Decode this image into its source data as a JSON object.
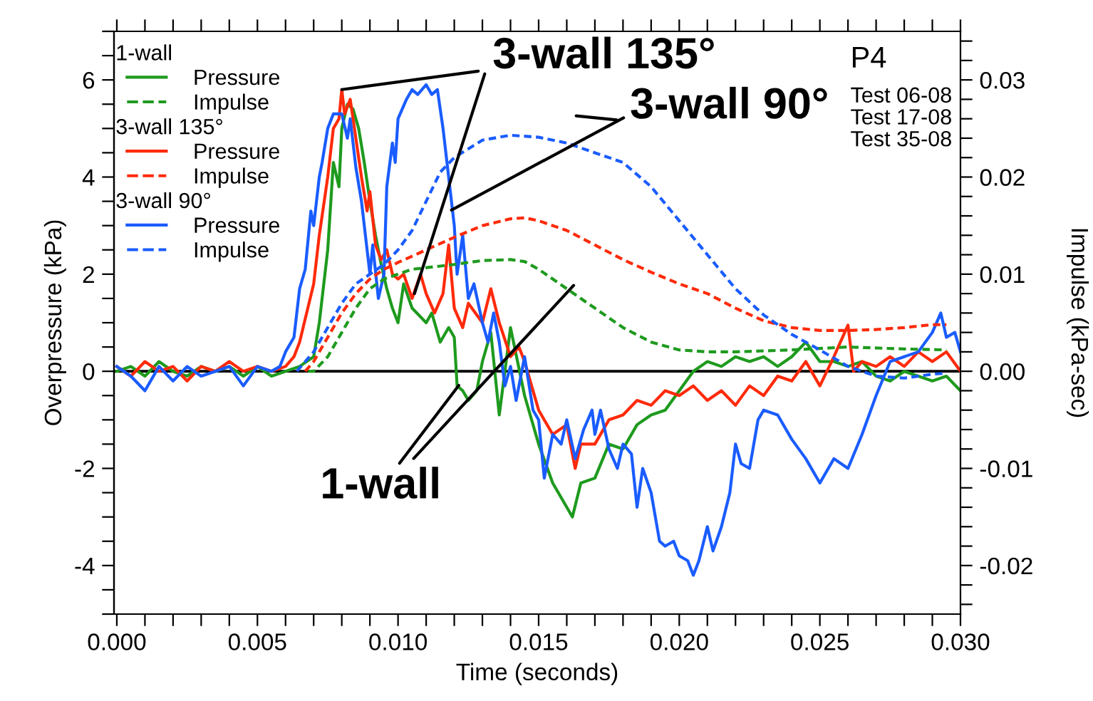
{
  "chart_data": {
    "type": "line",
    "xlabel": "Time (seconds)",
    "ylabel": "Overpressure (kPa)",
    "y2label": "Impulse (kPa-sec)",
    "xlim": [
      -0.0001,
      0.03
    ],
    "ylim": [
      -5,
      7
    ],
    "y2lim": [
      -0.025,
      0.035
    ],
    "xticks": [
      {
        "value": 0,
        "label": "0.000"
      },
      {
        "value": 0.001,
        "label": null
      },
      {
        "value": 0.002,
        "label": null
      },
      {
        "value": 0.003,
        "label": null
      },
      {
        "value": 0.004,
        "label": null
      },
      {
        "value": 0.005,
        "label": "0.005"
      },
      {
        "value": 0.006,
        "label": null
      },
      {
        "value": 0.007,
        "label": null
      },
      {
        "value": 0.008,
        "label": null
      },
      {
        "value": 0.009,
        "label": null
      },
      {
        "value": 0.01,
        "label": "0.010"
      },
      {
        "value": 0.011,
        "label": null
      },
      {
        "value": 0.012,
        "label": null
      },
      {
        "value": 0.013,
        "label": null
      },
      {
        "value": 0.014,
        "label": null
      },
      {
        "value": 0.015,
        "label": "0.015"
      },
      {
        "value": 0.016,
        "label": null
      },
      {
        "value": 0.017,
        "label": null
      },
      {
        "value": 0.018,
        "label": null
      },
      {
        "value": 0.019,
        "label": null
      },
      {
        "value": 0.02,
        "label": "0.020"
      },
      {
        "value": 0.021,
        "label": null
      },
      {
        "value": 0.022,
        "label": null
      },
      {
        "value": 0.023,
        "label": null
      },
      {
        "value": 0.024,
        "label": null
      },
      {
        "value": 0.025,
        "label": "0.025"
      },
      {
        "value": 0.026,
        "label": null
      },
      {
        "value": 0.027,
        "label": null
      },
      {
        "value": 0.028,
        "label": null
      },
      {
        "value": 0.029,
        "label": null
      },
      {
        "value": 0.03,
        "label": "0.030"
      }
    ],
    "yticks": [
      {
        "value": -5,
        "label": null
      },
      {
        "value": -4.5,
        "label": null
      },
      -4,
      {
        "value": -3.5,
        "label": null
      },
      {
        "value": -3,
        "label": null
      },
      {
        "value": -2.5,
        "label": null
      },
      -2,
      {
        "value": -1.5,
        "label": null
      },
      {
        "value": -1,
        "label": null
      },
      {
        "value": -0.5,
        "label": null
      },
      0,
      {
        "value": 0.5,
        "label": null
      },
      {
        "value": 1,
        "label": null
      },
      {
        "value": 1.5,
        "label": null
      },
      2,
      {
        "value": 2.5,
        "label": null
      },
      {
        "value": 3,
        "label": null
      },
      {
        "value": 3.5,
        "label": null
      },
      4,
      {
        "value": 4.5,
        "label": null
      },
      {
        "value": 5,
        "label": null
      },
      {
        "value": 5.5,
        "label": null
      },
      6,
      {
        "value": 6.5,
        "label": null
      },
      {
        "value": 7,
        "label": null
      }
    ],
    "y2ticks": [
      {
        "value": -0.024,
        "label": null
      },
      {
        "value": -0.022,
        "label": null
      },
      {
        "value": -0.02,
        "label": "-0.02"
      },
      {
        "value": -0.018,
        "label": null
      },
      {
        "value": -0.016,
        "label": null
      },
      {
        "value": -0.014,
        "label": null
      },
      {
        "value": -0.012,
        "label": null
      },
      {
        "value": -0.01,
        "label": "-0.01"
      },
      {
        "value": -0.008,
        "label": null
      },
      {
        "value": -0.006,
        "label": null
      },
      {
        "value": -0.004,
        "label": null
      },
      {
        "value": -0.002,
        "label": null
      },
      {
        "value": 0,
        "label": "0.00"
      },
      {
        "value": 0.002,
        "label": null
      },
      {
        "value": 0.004,
        "label": null
      },
      {
        "value": 0.006,
        "label": null
      },
      {
        "value": 0.008,
        "label": null
      },
      {
        "value": 0.01,
        "label": "0.01"
      },
      {
        "value": 0.012,
        "label": null
      },
      {
        "value": 0.014,
        "label": null
      },
      {
        "value": 0.016,
        "label": null
      },
      {
        "value": 0.018,
        "label": null
      },
      {
        "value": 0.02,
        "label": "0.02"
      },
      {
        "value": 0.022,
        "label": null
      },
      {
        "value": 0.024,
        "label": null
      },
      {
        "value": 0.026,
        "label": null
      },
      {
        "value": 0.028,
        "label": null
      },
      {
        "value": 0.03,
        "label": "0.03"
      },
      {
        "value": 0.032,
        "label": null
      },
      {
        "value": 0.034,
        "label": null
      }
    ],
    "grid": false,
    "legend": "top left",
    "marker": "none",
    "ref_lines": [
      {
        "axis": "y",
        "value": 0,
        "color": "#000000",
        "line_style": "solid"
      }
    ],
    "annotations": [
      "1-wall",
      "3-wall 135°",
      "3-wall 90°",
      "P4",
      "Test 06-08\nTest 17-08\nTest 35-08",
      {
        "text": "3-wall 135°",
        "x": 0.008,
        "y": 5.8
      },
      {
        "text": "3-wall 90°",
        "x": 0.0119,
        "y": 3.32
      },
      {
        "text": "1-wall",
        "x": 0.01216,
        "y": -0.29
      }
    ],
    "series": [
      {
        "name": "Pressure",
        "color": "#1e9a1e",
        "line_style": "solid",
        "x": [
          0,
          0.0005,
          0.001,
          0.0015,
          0.002,
          0.0025,
          0.003,
          0.0035,
          0.004,
          0.0045,
          0.005,
          0.0055,
          0.006,
          0.0065,
          0.007,
          0.0072,
          0.0075,
          0.0077,
          0.0079,
          0.008,
          0.0082,
          0.0084,
          0.0086,
          0.0088,
          0.009,
          0.0092,
          0.0094,
          0.0096,
          0.0098,
          0.01,
          0.0102,
          0.0105,
          0.011,
          0.0112,
          0.0115,
          0.0118,
          0.012,
          0.0121,
          0.0123,
          0.0125,
          0.0128,
          0.013,
          0.0133,
          0.0136,
          0.014,
          0.0145,
          0.015,
          0.0155,
          0.016,
          0.0162,
          0.0165,
          0.017,
          0.0175,
          0.018,
          0.0185,
          0.019,
          0.0195,
          0.02,
          0.0205,
          0.021,
          0.0215,
          0.022,
          0.0225,
          0.023,
          0.0235,
          0.024,
          0.0245,
          0.025,
          0.0255,
          0.026,
          0.0265,
          0.027,
          0.0275,
          0.028,
          0.0285,
          0.029,
          0.0295,
          0.03
        ],
        "values": [
          0.0,
          0.1,
          -0.1,
          0.2,
          0.0,
          -0.1,
          0.1,
          0.0,
          0.1,
          -0.1,
          0.1,
          -0.1,
          0.0,
          0.1,
          0.3,
          1.0,
          2.5,
          4.3,
          3.8,
          5.0,
          5.5,
          5.4,
          5.0,
          4.3,
          3.5,
          2.8,
          2.2,
          1.7,
          1.3,
          1.0,
          1.8,
          1.3,
          1.0,
          1.2,
          0.6,
          0.9,
          0.7,
          -0.3,
          -0.4,
          -0.6,
          -0.4,
          0.2,
          0.8,
          -0.9,
          0.9,
          -0.5,
          -1.5,
          -2.3,
          -2.8,
          -3.0,
          -2.3,
          -2.2,
          -1.5,
          -1.6,
          -1.1,
          -0.9,
          -0.8,
          -0.4,
          0.0,
          0.2,
          0.1,
          0.3,
          0.2,
          0.3,
          0.1,
          0.3,
          0.6,
          0.2,
          0.2,
          0.1,
          0.2,
          -0.1,
          -0.2,
          0.0,
          -0.1,
          -0.2,
          -0.1,
          -0.4
        ]
      },
      {
        "name": "Impulse",
        "color": "#1e9a1e",
        "line_style": "dashed",
        "axis": "y2",
        "x": [
          0.0068,
          0.007,
          0.0075,
          0.008,
          0.0085,
          0.009,
          0.0095,
          0.0105,
          0.012,
          0.013,
          0.014,
          0.0145,
          0.015,
          0.016,
          0.017,
          0.018,
          0.019,
          0.02,
          0.021,
          0.022,
          0.024,
          0.026,
          0.028,
          0.0295
        ],
        "values": [
          0,
          0,
          0.0015,
          0.004,
          0.0065,
          0.0085,
          0.0095,
          0.0105,
          0.011,
          0.0114,
          0.0115,
          0.0113,
          0.0105,
          0.0085,
          0.0065,
          0.0045,
          0.003,
          0.0022,
          0.002,
          0.002,
          0.0022,
          0.0025,
          0.0023,
          0.0022
        ]
      },
      {
        "name": "Pressure",
        "color": "#ff2a0a",
        "line_style": "solid",
        "x": [
          0,
          0.0005,
          0.001,
          0.0015,
          0.002,
          0.0025,
          0.003,
          0.0035,
          0.004,
          0.0045,
          0.005,
          0.0055,
          0.006,
          0.0063,
          0.0065,
          0.007,
          0.0072,
          0.0075,
          0.0077,
          0.0079,
          0.008,
          0.0081,
          0.0083,
          0.0085,
          0.0087,
          0.0089,
          0.009,
          0.0092,
          0.0094,
          0.0096,
          0.0098,
          0.01,
          0.0102,
          0.0105,
          0.0108,
          0.011,
          0.0113,
          0.0116,
          0.0118,
          0.012,
          0.0123,
          0.0125,
          0.013,
          0.0133,
          0.0136,
          0.014,
          0.0143,
          0.0145,
          0.015,
          0.0155,
          0.016,
          0.0163,
          0.0165,
          0.017,
          0.0175,
          0.018,
          0.0185,
          0.019,
          0.0195,
          0.02,
          0.0205,
          0.021,
          0.0215,
          0.022,
          0.0225,
          0.023,
          0.0235,
          0.024,
          0.0245,
          0.025,
          0.0255,
          0.026,
          0.0262,
          0.0265,
          0.027,
          0.0275,
          0.028,
          0.0285,
          0.029,
          0.0295,
          0.03
        ],
        "values": [
          0.1,
          -0.1,
          0.2,
          0.0,
          0.1,
          -0.2,
          0.1,
          0.0,
          0.2,
          0.0,
          0.1,
          0.0,
          0.1,
          0.3,
          0.6,
          1.8,
          2.8,
          4.0,
          5.0,
          5.2,
          5.8,
          5.3,
          5.6,
          4.8,
          4.0,
          3.3,
          3.7,
          2.6,
          2.3,
          2.5,
          2.0,
          1.9,
          2.0,
          1.5,
          2.0,
          1.6,
          1.2,
          1.6,
          2.6,
          1.3,
          0.9,
          1.4,
          1.0,
          1.7,
          1.0,
          0.3,
          0.5,
          0.2,
          -0.8,
          -1.3,
          -1.1,
          -2.0,
          -1.5,
          -1.5,
          -1.0,
          -0.9,
          -0.6,
          -0.7,
          -0.4,
          -0.5,
          -0.3,
          -0.6,
          -0.4,
          -0.7,
          -0.3,
          -0.5,
          -0.1,
          -0.2,
          0.2,
          -0.3,
          0.3,
          0.95,
          0.0,
          0.2,
          0.1,
          0.3,
          0.1,
          0.4,
          0.2,
          0.4,
          0.0
        ]
      },
      {
        "name": "Impulse",
        "color": "#ff2a0a",
        "line_style": "dashed",
        "axis": "y2",
        "x": [
          0.0067,
          0.007,
          0.0075,
          0.008,
          0.0085,
          0.009,
          0.0095,
          0.01,
          0.011,
          0.012,
          0.013,
          0.014,
          0.0145,
          0.015,
          0.016,
          0.017,
          0.018,
          0.019,
          0.02,
          0.021,
          0.022,
          0.023,
          0.024,
          0.025,
          0.026,
          0.027,
          0.028,
          0.029,
          0.0295
        ],
        "values": [
          0,
          0.001,
          0.0035,
          0.006,
          0.008,
          0.0095,
          0.0105,
          0.0112,
          0.0125,
          0.0138,
          0.015,
          0.0157,
          0.0158,
          0.0155,
          0.0145,
          0.013,
          0.0115,
          0.0102,
          0.009,
          0.008,
          0.0065,
          0.0052,
          0.0045,
          0.0042,
          0.0042,
          0.0043,
          0.0045,
          0.0048,
          0.0048
        ]
      },
      {
        "name": "Pressure",
        "color": "#1a5cff",
        "line_style": "solid",
        "x": [
          0,
          0.0005,
          0.001,
          0.0015,
          0.002,
          0.0025,
          0.003,
          0.0035,
          0.004,
          0.0045,
          0.005,
          0.0055,
          0.0058,
          0.006,
          0.0063,
          0.0065,
          0.0067,
          0.0069,
          0.007,
          0.0072,
          0.0073,
          0.0075,
          0.0077,
          0.008,
          0.0082,
          0.0083,
          0.0085,
          0.0087,
          0.0088,
          0.009,
          0.0091,
          0.0093,
          0.0095,
          0.0096,
          0.0098,
          0.0099,
          0.01,
          0.0103,
          0.0105,
          0.0107,
          0.011,
          0.0112,
          0.0114,
          0.0116,
          0.0118,
          0.012,
          0.0121,
          0.0123,
          0.0125,
          0.0127,
          0.013,
          0.0132,
          0.0134,
          0.0136,
          0.0138,
          0.014,
          0.0142,
          0.0145,
          0.0148,
          0.015,
          0.0152,
          0.0155,
          0.0158,
          0.016,
          0.0163,
          0.0166,
          0.0169,
          0.017,
          0.0172,
          0.0175,
          0.0178,
          0.018,
          0.0183,
          0.0185,
          0.0187,
          0.019,
          0.0193,
          0.0195,
          0.0198,
          0.02,
          0.0203,
          0.0205,
          0.0207,
          0.021,
          0.0212,
          0.0215,
          0.0218,
          0.022,
          0.0222,
          0.0225,
          0.0228,
          0.023,
          0.0235,
          0.024,
          0.0245,
          0.025,
          0.0255,
          0.026,
          0.0265,
          0.027,
          0.0275,
          0.028,
          0.0285,
          0.029,
          0.0293,
          0.0295,
          0.0298,
          0.03
        ],
        "values": [
          0.1,
          -0.1,
          -0.4,
          0.1,
          -0.2,
          0.1,
          -0.1,
          0.0,
          0.1,
          -0.3,
          0.1,
          0.0,
          0.1,
          0.4,
          0.7,
          1.7,
          2.1,
          3.3,
          3.0,
          4.0,
          4.3,
          5.0,
          5.3,
          5.3,
          4.8,
          5.2,
          4.2,
          3.5,
          3.0,
          2.0,
          2.6,
          1.5,
          2.0,
          3.8,
          4.7,
          4.3,
          5.2,
          5.6,
          5.8,
          5.7,
          5.9,
          5.7,
          5.8,
          5.0,
          4.0,
          3.0,
          2.0,
          2.8,
          1.5,
          1.8,
          1.0,
          0.6,
          1.2,
          0.6,
          -0.3,
          0.1,
          -0.6,
          0.3,
          -0.8,
          -1.0,
          -2.2,
          -1.3,
          -1.5,
          -1.0,
          -1.8,
          -1.2,
          -0.8,
          -1.3,
          -0.8,
          -1.6,
          -2.0,
          -1.5,
          -1.7,
          -2.8,
          -2.0,
          -2.5,
          -3.5,
          -3.6,
          -3.5,
          -3.8,
          -3.9,
          -4.2,
          -3.9,
          -3.2,
          -3.7,
          -3.2,
          -2.5,
          -1.5,
          -1.9,
          -2.0,
          -1.0,
          -0.8,
          -0.9,
          -1.4,
          -1.8,
          -2.3,
          -1.8,
          -2.0,
          -1.3,
          -0.5,
          0.2,
          0.3,
          0.4,
          0.8,
          1.2,
          0.7,
          0.8,
          0.4
        ]
      },
      {
        "name": "Impulse",
        "color": "#1a5cff",
        "line_style": "dashed",
        "axis": "y2",
        "x": [
          0.0064,
          0.007,
          0.0075,
          0.008,
          0.0085,
          0.009,
          0.0095,
          0.01,
          0.0105,
          0.011,
          0.0115,
          0.012,
          0.013,
          0.014,
          0.015,
          0.016,
          0.017,
          0.018,
          0.019,
          0.02,
          0.021,
          0.022,
          0.023,
          0.024,
          0.025,
          0.026,
          0.027,
          0.028,
          0.029,
          0.0295
        ],
        "values": [
          0,
          0.002,
          0.0045,
          0.007,
          0.009,
          0.01,
          0.011,
          0.0125,
          0.0145,
          0.0175,
          0.0205,
          0.022,
          0.0238,
          0.0243,
          0.0241,
          0.0235,
          0.0225,
          0.0215,
          0.019,
          0.0155,
          0.012,
          0.0085,
          0.0058,
          0.0038,
          0.0022,
          0.0005,
          -0.0005,
          -0.0007,
          -0.0003,
          -0.0002
        ]
      }
    ]
  }
}
